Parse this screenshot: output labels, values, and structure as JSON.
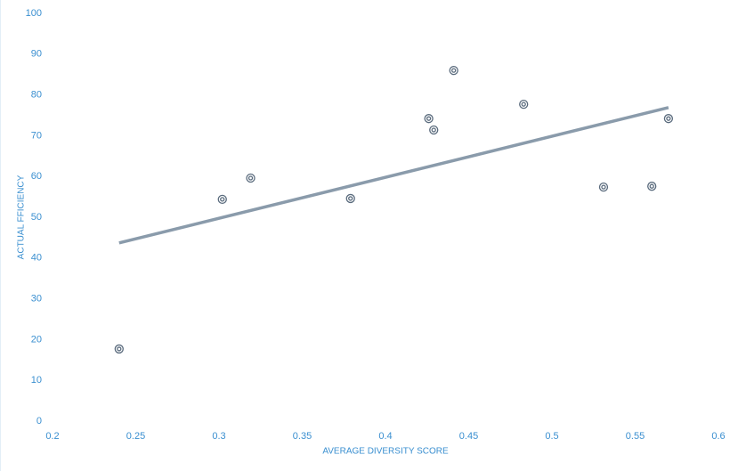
{
  "chart_data": {
    "type": "scatter",
    "x_label": "AVERAGE DIVERSITY SCORE",
    "y_label": "ACTUAL FFICIENCY",
    "x": [
      0.24,
      0.302,
      0.319,
      0.379,
      0.426,
      0.429,
      0.441,
      0.483,
      0.531,
      0.56,
      0.57
    ],
    "values": [
      17.7,
      54.4,
      59.6,
      54.6,
      74.2,
      71.4,
      86.0,
      77.7,
      57.4,
      57.6,
      74.2
    ],
    "color": "#5a6b7d",
    "trendline": {
      "x": [
        0.24,
        0.57
      ],
      "y": [
        43.7,
        76.9
      ],
      "color": "#8a9bab"
    },
    "xlim": [
      0.2,
      0.6
    ],
    "xticks": [
      0.2,
      0.25,
      0.3,
      0.35,
      0.4,
      0.45,
      0.5,
      0.55,
      0.6
    ],
    "ylim": [
      0,
      100
    ],
    "yticks": [
      0,
      10,
      20,
      30,
      40,
      50,
      60,
      70,
      80,
      90,
      100
    ]
  }
}
